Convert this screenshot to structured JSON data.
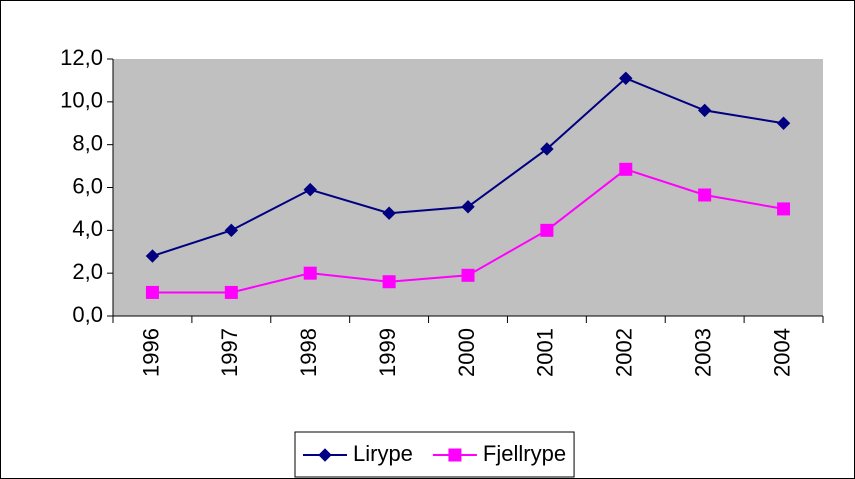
{
  "chart_data": {
    "type": "line",
    "categories": [
      "1996",
      "1997",
      "1998",
      "1999",
      "2000",
      "2001",
      "2002",
      "2003",
      "2004"
    ],
    "series": [
      {
        "name": "Lirype",
        "color": "#000080",
        "marker": "diamond",
        "values": [
          2.8,
          4.0,
          5.9,
          4.8,
          5.1,
          7.8,
          11.1,
          9.6,
          9.0
        ]
      },
      {
        "name": "Fjellrype",
        "color": "#ff00ff",
        "marker": "square",
        "values": [
          1.1,
          1.1,
          2.0,
          1.6,
          1.9,
          4.0,
          6.85,
          5.65,
          5.0
        ]
      }
    ],
    "ylim": [
      0,
      12
    ],
    "yticks": [
      {
        "value": 0,
        "label": "0,0"
      },
      {
        "value": 2,
        "label": "2,0"
      },
      {
        "value": 4,
        "label": "4,0"
      },
      {
        "value": 6,
        "label": "6,0"
      },
      {
        "value": 8,
        "label": "8,0"
      },
      {
        "value": 10,
        "label": "10,0"
      },
      {
        "value": 12,
        "label": "12,0"
      }
    ],
    "plot_background": "#c0c0c0",
    "grid": false,
    "legend": "bottom"
  }
}
